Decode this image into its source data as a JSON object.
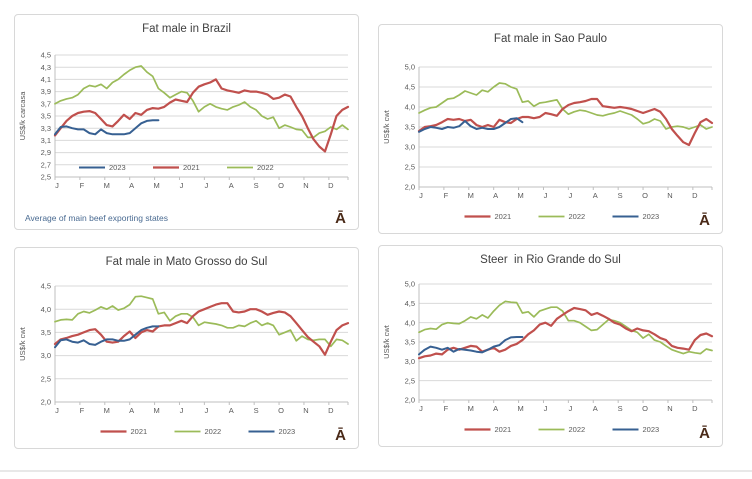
{
  "branding": {
    "logo_glyph": "Ā",
    "logo_color": "#4A2A18"
  },
  "page": {
    "divider_color": "#E8E8E8"
  },
  "months": [
    "J",
    "F",
    "M",
    "A",
    "M",
    "J",
    "J",
    "A",
    "S",
    "O",
    "N",
    "D"
  ],
  "palette": {
    "grid": "#D9D9D9",
    "axis": "#BFBFBF",
    "tick_text": "#595959",
    "title_text": "#3F3F3F",
    "footnote_text": "#4A6B92"
  },
  "chart_data": [
    {
      "type": "line",
      "title": "Fat male in Brazil",
      "ylabel": "US$/k carcasa",
      "footnote": "Average  of main beef exporting states",
      "ylim": [
        2.5,
        4.5
      ],
      "yticks": [
        4.5,
        4.3,
        4.1,
        3.9,
        3.7,
        3.5,
        3.3,
        3.1,
        2.9,
        2.7,
        2.5
      ],
      "points_per_year": 52,
      "legend": {
        "position": "inside",
        "order": [
          "2023",
          "2021",
          "2022"
        ]
      },
      "series": [
        {
          "name": "2022",
          "color": "#9BBB59",
          "width": 1.7,
          "values": [
            3.7,
            3.75,
            3.78,
            3.8,
            3.85,
            3.95,
            4.0,
            3.98,
            4.02,
            3.95,
            4.05,
            4.1,
            4.18,
            4.25,
            4.3,
            4.32,
            4.22,
            4.15,
            3.95,
            3.88,
            3.8,
            3.85,
            3.9,
            3.88,
            3.75,
            3.57,
            3.65,
            3.7,
            3.65,
            3.62,
            3.6,
            3.65,
            3.68,
            3.73,
            3.65,
            3.6,
            3.5,
            3.45,
            3.48,
            3.3,
            3.35,
            3.32,
            3.28,
            3.27,
            3.15,
            3.15,
            3.22,
            3.25,
            3.32,
            3.28,
            3.35,
            3.28
          ]
        },
        {
          "name": "2021",
          "color": "#C0504D",
          "width": 2.2,
          "values": [
            3.18,
            3.3,
            3.42,
            3.5,
            3.55,
            3.57,
            3.58,
            3.55,
            3.45,
            3.35,
            3.33,
            3.42,
            3.52,
            3.45,
            3.55,
            3.52,
            3.6,
            3.63,
            3.62,
            3.65,
            3.72,
            3.77,
            3.75,
            3.73,
            3.88,
            3.98,
            4.02,
            4.05,
            4.1,
            3.95,
            3.92,
            3.9,
            3.88,
            3.92,
            3.9,
            3.9,
            3.88,
            3.85,
            3.78,
            3.8,
            3.85,
            3.82,
            3.65,
            3.5,
            3.3,
            3.12,
            3.0,
            2.92,
            3.2,
            3.5,
            3.6,
            3.65
          ]
        },
        {
          "name": "2023",
          "color": "#376092",
          "width": 2.0,
          "values": [
            3.2,
            3.32,
            3.33,
            3.3,
            3.28,
            3.28,
            3.22,
            3.2,
            3.28,
            3.22,
            3.2,
            3.2,
            3.2,
            3.22,
            3.3,
            3.38,
            3.42,
            3.43,
            3.43
          ]
        }
      ]
    },
    {
      "type": "line",
      "title": "Fat male in Sao Paulo",
      "ylabel": "US$/k cwt",
      "ylim": [
        2.0,
        5.0
      ],
      "yticks": [
        5.0,
        4.5,
        4.0,
        3.5,
        3.0,
        2.5,
        2.0
      ],
      "points_per_year": 52,
      "legend": {
        "position": "bottom",
        "order": [
          "2021",
          "2022",
          "2023"
        ]
      },
      "series": [
        {
          "name": "2022",
          "color": "#9BBB59",
          "width": 1.7,
          "values": [
            3.85,
            3.92,
            3.98,
            4.0,
            4.1,
            4.2,
            4.22,
            4.3,
            4.4,
            4.35,
            4.3,
            4.42,
            4.38,
            4.5,
            4.6,
            4.58,
            4.5,
            4.45,
            4.12,
            4.15,
            4.02,
            4.1,
            4.12,
            4.15,
            4.18,
            3.95,
            3.82,
            3.88,
            3.92,
            3.9,
            3.85,
            3.8,
            3.78,
            3.82,
            3.85,
            3.9,
            3.85,
            3.8,
            3.7,
            3.58,
            3.62,
            3.7,
            3.65,
            3.45,
            3.5,
            3.52,
            3.5,
            3.45,
            3.5,
            3.55,
            3.45,
            3.5
          ]
        },
        {
          "name": "2021",
          "color": "#C0504D",
          "width": 2.2,
          "values": [
            3.4,
            3.5,
            3.52,
            3.55,
            3.62,
            3.7,
            3.68,
            3.7,
            3.65,
            3.68,
            3.55,
            3.5,
            3.55,
            3.5,
            3.68,
            3.62,
            3.6,
            3.7,
            3.75,
            3.75,
            3.72,
            3.75,
            3.85,
            3.82,
            3.78,
            3.95,
            4.05,
            4.1,
            4.12,
            4.15,
            4.2,
            4.2,
            4.02,
            4.0,
            3.98,
            4.0,
            3.98,
            3.95,
            3.9,
            3.85,
            3.9,
            3.95,
            3.88,
            3.7,
            3.45,
            3.28,
            3.12,
            3.05,
            3.35,
            3.62,
            3.7,
            3.6
          ]
        },
        {
          "name": "2023",
          "color": "#376092",
          "width": 2.0,
          "values": [
            3.38,
            3.45,
            3.5,
            3.48,
            3.45,
            3.5,
            3.48,
            3.52,
            3.65,
            3.52,
            3.45,
            3.48,
            3.45,
            3.45,
            3.5,
            3.6,
            3.7,
            3.72,
            3.62
          ]
        }
      ]
    },
    {
      "type": "line",
      "title": "Fat male in Mato Grosso do Sul",
      "ylabel": "US$/k cwt",
      "ylim": [
        2.0,
        4.5
      ],
      "yticks": [
        4.5,
        4.0,
        3.5,
        3.0,
        2.5,
        2.0
      ],
      "points_per_year": 52,
      "legend": {
        "position": "bottom",
        "order": [
          "2021",
          "2022",
          "2023"
        ]
      },
      "series": [
        {
          "name": "2022",
          "color": "#9BBB59",
          "width": 1.7,
          "values": [
            3.73,
            3.77,
            3.78,
            3.77,
            3.9,
            3.95,
            3.92,
            3.98,
            4.05,
            4.0,
            4.07,
            3.98,
            4.02,
            4.1,
            4.27,
            4.28,
            4.25,
            4.22,
            3.9,
            3.93,
            3.75,
            3.85,
            3.9,
            3.9,
            3.83,
            3.65,
            3.72,
            3.7,
            3.68,
            3.65,
            3.6,
            3.6,
            3.65,
            3.63,
            3.7,
            3.75,
            3.65,
            3.7,
            3.65,
            3.45,
            3.5,
            3.55,
            3.32,
            3.42,
            3.35,
            3.33,
            3.35,
            3.35,
            3.2,
            3.35,
            3.33,
            3.25
          ]
        },
        {
          "name": "2021",
          "color": "#C0504D",
          "width": 2.2,
          "values": [
            3.25,
            3.35,
            3.38,
            3.42,
            3.45,
            3.5,
            3.55,
            3.57,
            3.45,
            3.3,
            3.28,
            3.3,
            3.42,
            3.52,
            3.38,
            3.5,
            3.55,
            3.52,
            3.63,
            3.65,
            3.65,
            3.7,
            3.75,
            3.7,
            3.85,
            3.95,
            4.0,
            4.05,
            4.1,
            4.13,
            4.13,
            3.95,
            3.93,
            3.95,
            4.0,
            4.0,
            3.95,
            3.88,
            3.92,
            3.95,
            3.93,
            3.85,
            3.7,
            3.55,
            3.4,
            3.3,
            3.2,
            3.02,
            3.3,
            3.55,
            3.65,
            3.7
          ]
        },
        {
          "name": "2023",
          "color": "#376092",
          "width": 2.0,
          "values": [
            3.18,
            3.33,
            3.35,
            3.3,
            3.28,
            3.33,
            3.25,
            3.23,
            3.3,
            3.35,
            3.35,
            3.32,
            3.32,
            3.35,
            3.45,
            3.55,
            3.6,
            3.63,
            3.63
          ]
        }
      ]
    },
    {
      "type": "line",
      "title": "Steer  in Rio Grande do Sul",
      "ylabel": "US$/k cwt",
      "ylim": [
        2.0,
        5.0
      ],
      "yticks": [
        5.0,
        4.5,
        4.0,
        3.5,
        3.0,
        2.5,
        2.0
      ],
      "points_per_year": 52,
      "legend": {
        "position": "bottom",
        "order": [
          "2021",
          "2022",
          "2023"
        ]
      },
      "series": [
        {
          "name": "2022",
          "color": "#9BBB59",
          "width": 1.7,
          "values": [
            3.75,
            3.82,
            3.85,
            3.83,
            3.95,
            4.0,
            3.98,
            3.97,
            4.05,
            4.15,
            4.1,
            4.2,
            4.12,
            4.3,
            4.45,
            4.55,
            4.53,
            4.52,
            4.25,
            4.28,
            4.15,
            4.3,
            4.35,
            4.4,
            4.4,
            4.3,
            4.05,
            4.05,
            4.0,
            3.9,
            3.8,
            3.82,
            3.95,
            4.08,
            4.05,
            4.0,
            3.9,
            3.8,
            3.75,
            3.6,
            3.7,
            3.55,
            3.5,
            3.4,
            3.3,
            3.25,
            3.2,
            3.25,
            3.22,
            3.2,
            3.32,
            3.28
          ]
        },
        {
          "name": "2021",
          "color": "#C0504D",
          "width": 2.2,
          "values": [
            3.08,
            3.13,
            3.15,
            3.2,
            3.18,
            3.3,
            3.35,
            3.3,
            3.35,
            3.4,
            3.38,
            3.25,
            3.3,
            3.35,
            3.25,
            3.3,
            3.4,
            3.45,
            3.55,
            3.7,
            3.8,
            3.95,
            4.0,
            3.92,
            4.1,
            4.2,
            4.3,
            4.38,
            4.35,
            4.32,
            4.2,
            4.25,
            4.18,
            4.1,
            4.0,
            3.95,
            3.85,
            3.78,
            3.85,
            3.8,
            3.78,
            3.7,
            3.6,
            3.55,
            3.4,
            3.35,
            3.33,
            3.3,
            3.55,
            3.68,
            3.72,
            3.65
          ]
        },
        {
          "name": "2023",
          "color": "#376092",
          "width": 2.0,
          "values": [
            3.18,
            3.3,
            3.38,
            3.35,
            3.3,
            3.35,
            3.25,
            3.32,
            3.3,
            3.28,
            3.25,
            3.23,
            3.3,
            3.38,
            3.42,
            3.55,
            3.62,
            3.63,
            3.63
          ]
        }
      ]
    }
  ]
}
